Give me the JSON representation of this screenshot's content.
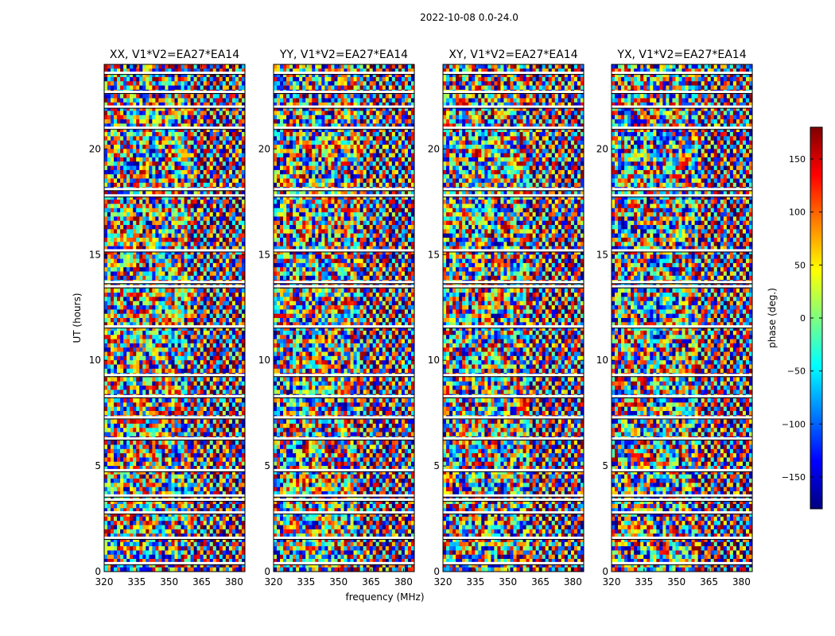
{
  "chart_data": {
    "type": "heatmap",
    "title": "2022-10-08 0.0-24.0",
    "xlabel": "frequency (MHz)",
    "ylabel": "UT (hours)",
    "xlim": [
      320,
      385
    ],
    "ylim": [
      0,
      24
    ],
    "x_ticks": [
      320,
      335,
      350,
      365,
      380
    ],
    "y_ticks": [
      0,
      5,
      10,
      15,
      20
    ],
    "panels": [
      {
        "name": "XX, V1*V2=EA27*EA14"
      },
      {
        "name": "YY, V1*V2=EA27*EA14"
      },
      {
        "name": "XY, V1*V2=EA27*EA14"
      },
      {
        "name": "YX, V1*V2=EA27*EA14"
      }
    ],
    "colorbar": {
      "label": "phase (deg.)",
      "range": [
        -180,
        180
      ],
      "ticks": [
        150,
        100,
        50,
        0,
        -50,
        -100,
        -150
      ],
      "tick_labels": [
        "150",
        "100",
        "50",
        "0",
        "−50",
        "−100",
        "−150"
      ],
      "colormap": "jet",
      "colors": [
        "#00007f",
        "#0000ff",
        "#007fff",
        "#00ffff",
        "#7fff7f",
        "#ffff00",
        "#ff7f00",
        "#ff0000",
        "#7f0000"
      ]
    }
  }
}
